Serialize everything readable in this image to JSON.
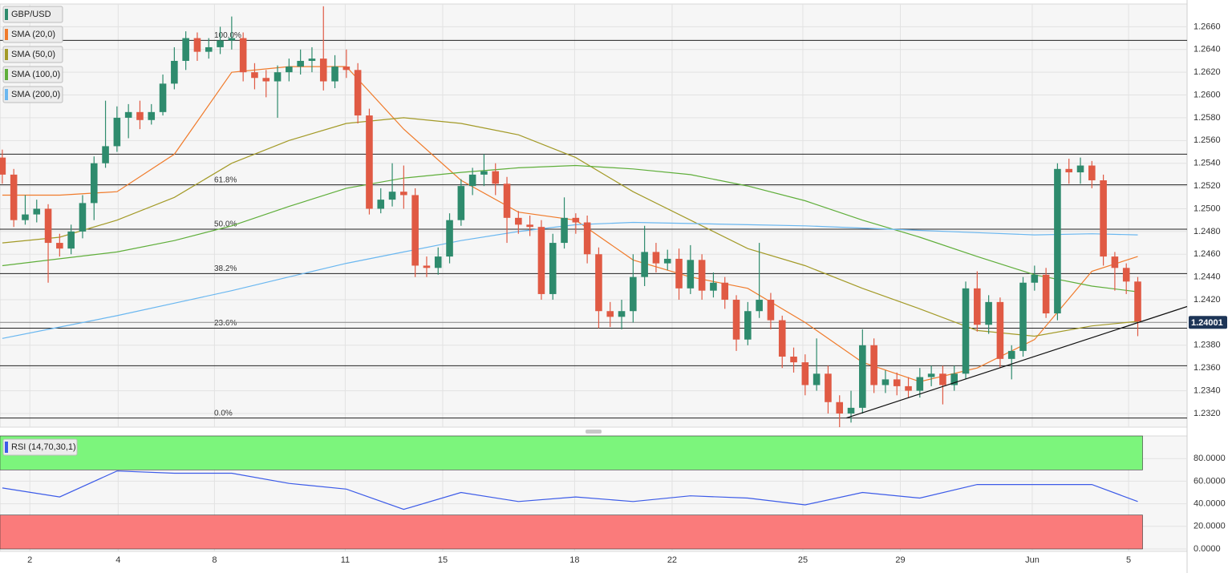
{
  "chart_data": [
    {
      "type": "candlestick",
      "name": "GBP/USD",
      "up_color": "#2e8b6d",
      "down_color": "#e05a44",
      "grid": true,
      "open": [
        1.2545,
        1.253,
        1.249,
        1.2495,
        1.25,
        1.247,
        1.2465,
        1.248,
        1.2505,
        1.254,
        1.2555,
        1.258,
        1.2585,
        1.2578,
        1.2585,
        1.261,
        1.263,
        1.265,
        1.2638,
        1.2642,
        1.2648,
        1.265,
        1.262,
        1.2615,
        1.2612,
        1.262,
        1.2625,
        1.263,
        1.2632,
        1.2612,
        1.2625,
        1.2622,
        1.2582,
        1.25,
        1.2508,
        1.2515,
        1.2512,
        1.245,
        1.2448,
        1.2458,
        1.249,
        1.252,
        1.253,
        1.2533,
        1.2522,
        1.2492,
        1.2486,
        1.2484,
        1.2425,
        1.247,
        1.2492,
        1.2488,
        1.246,
        1.241,
        1.2405,
        1.241,
        1.244,
        1.2462,
        1.2452,
        1.2456,
        1.243,
        1.2455,
        1.2428,
        1.2435,
        1.242,
        1.2385,
        1.241,
        1.242,
        1.2402,
        1.237,
        1.2365,
        1.2345,
        1.2355,
        1.233,
        1.232,
        1.2325,
        1.238,
        1.2345,
        1.235,
        1.2344,
        1.234,
        1.2352,
        1.2355,
        1.2345,
        1.2355,
        1.243,
        1.2398,
        1.2418,
        1.2368,
        1.2375,
        1.2435,
        1.2442,
        1.2408,
        1.2535,
        1.2532,
        1.2538,
        1.2525,
        1.2458,
        1.2448,
        1.2436
      ],
      "high": [
        1.2552,
        1.2535,
        1.2512,
        1.2508,
        1.2504,
        1.2478,
        1.2486,
        1.2512,
        1.2546,
        1.2595,
        1.259,
        1.2592,
        1.2595,
        1.2592,
        1.2618,
        1.2642,
        1.2656,
        1.2655,
        1.265,
        1.266,
        1.2669,
        1.2655,
        1.2628,
        1.2622,
        1.2626,
        1.2632,
        1.264,
        1.2642,
        1.2678,
        1.2635,
        1.264,
        1.2628,
        1.2588,
        1.2518,
        1.254,
        1.2538,
        1.2518,
        1.2458,
        1.2466,
        1.2496,
        1.2526,
        1.2536,
        1.2548,
        1.254,
        1.2528,
        1.2498,
        1.2494,
        1.249,
        1.2478,
        1.251,
        1.2496,
        1.2494,
        1.2466,
        1.2418,
        1.242,
        1.246,
        1.2485,
        1.247,
        1.2464,
        1.2465,
        1.2468,
        1.246,
        1.2444,
        1.244,
        1.2424,
        1.2418,
        1.247,
        1.2426,
        1.2406,
        1.2378,
        1.2372,
        1.2386,
        1.2362,
        1.2336,
        1.234,
        1.2394,
        1.2386,
        1.2358,
        1.2356,
        1.2352,
        1.236,
        1.2362,
        1.2362,
        1.2362,
        1.2436,
        1.2445,
        1.2424,
        1.2422,
        1.238,
        1.244,
        1.245,
        1.2448,
        1.254,
        1.2544,
        1.2545,
        1.2542,
        1.253,
        1.2462,
        1.2452,
        1.244
      ],
      "low": [
        1.2522,
        1.2484,
        1.2486,
        1.2488,
        1.2435,
        1.2458,
        1.246,
        1.2474,
        1.249,
        1.2536,
        1.255,
        1.2562,
        1.257,
        1.2574,
        1.2582,
        1.2605,
        1.2622,
        1.263,
        1.2632,
        1.2636,
        1.264,
        1.2612,
        1.2605,
        1.2598,
        1.258,
        1.2612,
        1.2618,
        1.262,
        1.2604,
        1.2606,
        1.2615,
        1.2575,
        1.2495,
        1.2496,
        1.2502,
        1.25,
        1.244,
        1.244,
        1.2442,
        1.2452,
        1.2485,
        1.2512,
        1.252,
        1.2512,
        1.247,
        1.2478,
        1.2476,
        1.242,
        1.242,
        1.2465,
        1.2478,
        1.2452,
        1.2395,
        1.2396,
        1.2394,
        1.24,
        1.2432,
        1.2444,
        1.2446,
        1.242,
        1.2425,
        1.242,
        1.2422,
        1.2412,
        1.2375,
        1.238,
        1.2404,
        1.2394,
        1.236,
        1.2356,
        1.2336,
        1.234,
        1.232,
        1.2308,
        1.2312,
        1.232,
        1.2338,
        1.2338,
        1.2336,
        1.2334,
        1.2334,
        1.2344,
        1.2328,
        1.234,
        1.235,
        1.2392,
        1.239,
        1.236,
        1.235,
        1.237,
        1.2428,
        1.2404,
        1.2402,
        1.2522,
        1.2522,
        1.2518,
        1.245,
        1.2428,
        1.2425,
        1.2388
      ],
      "close": [
        1.253,
        1.249,
        1.2495,
        1.25,
        1.247,
        1.2465,
        1.248,
        1.2505,
        1.254,
        1.2555,
        1.258,
        1.2585,
        1.2578,
        1.2585,
        1.261,
        1.263,
        1.265,
        1.2638,
        1.2642,
        1.2648,
        1.265,
        1.262,
        1.2615,
        1.2612,
        1.262,
        1.2625,
        1.263,
        1.2632,
        1.2612,
        1.2625,
        1.2622,
        1.2582,
        1.25,
        1.2508,
        1.2515,
        1.2512,
        1.245,
        1.2448,
        1.2458,
        1.249,
        1.252,
        1.253,
        1.2533,
        1.2522,
        1.2492,
        1.2486,
        1.2484,
        1.2425,
        1.247,
        1.2492,
        1.2488,
        1.246,
        1.241,
        1.2405,
        1.241,
        1.244,
        1.2462,
        1.2452,
        1.2456,
        1.243,
        1.2455,
        1.2428,
        1.2435,
        1.242,
        1.2385,
        1.241,
        1.242,
        1.2402,
        1.237,
        1.2365,
        1.2345,
        1.2355,
        1.233,
        1.232,
        1.2325,
        1.238,
        1.2345,
        1.235,
        1.2344,
        1.234,
        1.2352,
        1.2355,
        1.2345,
        1.2355,
        1.243,
        1.2398,
        1.2418,
        1.2368,
        1.2375,
        1.2435,
        1.2442,
        1.2408,
        1.2535,
        1.2532,
        1.2538,
        1.2525,
        1.2458,
        1.2448,
        1.2436,
        1.2401
      ],
      "series": [
        {
          "name": "SMA (20,0)",
          "color": "#f07b2b",
          "x": [
            0,
            5,
            10,
            15,
            20,
            25,
            30,
            35,
            40,
            45,
            50,
            55,
            60,
            65,
            70,
            75,
            80,
            85,
            90,
            95,
            99
          ],
          "values": [
            1.2512,
            1.2512,
            1.2515,
            1.2548,
            1.262,
            1.2625,
            1.2625,
            1.257,
            1.2525,
            1.2497,
            1.249,
            1.2455,
            1.244,
            1.243,
            1.24,
            1.2365,
            1.2348,
            1.236,
            1.2385,
            1.2445,
            1.2458
          ]
        },
        {
          "name": "SMA (50,0)",
          "color": "#a39a27",
          "x": [
            0,
            5,
            10,
            15,
            20,
            25,
            30,
            35,
            40,
            45,
            50,
            55,
            60,
            65,
            70,
            75,
            80,
            85,
            90,
            95,
            99
          ],
          "values": [
            1.247,
            1.2475,
            1.249,
            1.251,
            1.254,
            1.256,
            1.2575,
            1.258,
            1.2575,
            1.2565,
            1.2545,
            1.2515,
            1.249,
            1.2465,
            1.245,
            1.243,
            1.2412,
            1.2393,
            1.2388,
            1.2397,
            1.2401
          ]
        },
        {
          "name": "SMA (100,0)",
          "color": "#5fae3a",
          "x": [
            0,
            5,
            10,
            15,
            20,
            25,
            30,
            35,
            40,
            45,
            50,
            55,
            60,
            65,
            70,
            75,
            80,
            85,
            90,
            95,
            99
          ],
          "values": [
            1.245,
            1.2456,
            1.2462,
            1.2472,
            1.2485,
            1.2502,
            1.2518,
            1.2527,
            1.2532,
            1.2536,
            1.2538,
            1.2535,
            1.253,
            1.252,
            1.2507,
            1.249,
            1.2475,
            1.2458,
            1.2442,
            1.2432,
            1.2427
          ]
        },
        {
          "name": "SMA (200,0)",
          "color": "#6ab7f0",
          "x": [
            0,
            5,
            10,
            15,
            20,
            25,
            30,
            35,
            40,
            45,
            50,
            55,
            60,
            65,
            70,
            75,
            80,
            85,
            90,
            95,
            99
          ],
          "values": [
            1.2386,
            1.2396,
            1.2406,
            1.2417,
            1.2428,
            1.244,
            1.2452,
            1.2462,
            1.2472,
            1.248,
            1.2486,
            1.2488,
            1.2487,
            1.2486,
            1.2485,
            1.2483,
            1.2481,
            1.2479,
            1.2477,
            1.2478,
            1.2477
          ]
        }
      ],
      "fib_levels": [
        {
          "label": "100.0%",
          "value": 1.2648
        },
        {
          "label": "61.8%",
          "value": 1.2521
        },
        {
          "label": "50.0%",
          "value": 1.2482
        },
        {
          "label": "38.2%",
          "value": 1.2443
        },
        {
          "label": "23.6%",
          "value": 1.2395
        },
        {
          "label": "0.0%",
          "value": 1.2316
        }
      ],
      "levels": [
        1.2548,
        1.2362
      ],
      "trendline": {
        "x": [
          73.6,
          103.3
        ],
        "values": [
          1.2316,
          1.2414
        ]
      },
      "last_price": 1.24001,
      "xlim": [
        -0.2,
        103.3
      ],
      "ylim": [
        1.2308,
        1.268
      ],
      "yticks": [
        {
          "value": 1.232,
          "label": "1.2320"
        },
        {
          "value": 1.234,
          "label": "1.2340"
        },
        {
          "value": 1.236,
          "label": "1.2360"
        },
        {
          "value": 1.238,
          "label": "1.2380"
        },
        {
          "value": 1.24,
          "label": "1.2400"
        },
        {
          "value": 1.242,
          "label": "1.2420"
        },
        {
          "value": 1.244,
          "label": "1.2440"
        },
        {
          "value": 1.246,
          "label": "1.2460"
        },
        {
          "value": 1.248,
          "label": "1.2480"
        },
        {
          "value": 1.25,
          "label": "1.2500"
        },
        {
          "value": 1.252,
          "label": "1.2520"
        },
        {
          "value": 1.254,
          "label": "1.2540"
        },
        {
          "value": 1.256,
          "label": "1.2560"
        },
        {
          "value": 1.258,
          "label": "1.2580"
        },
        {
          "value": 1.26,
          "label": "1.2600"
        },
        {
          "value": 1.262,
          "label": "1.2620"
        },
        {
          "value": 1.264,
          "label": "1.2640"
        },
        {
          "value": 1.266,
          "label": "1.2660"
        }
      ],
      "xticks": [
        {
          "value": 2.4,
          "label": "2"
        },
        {
          "value": 10.1,
          "label": "4"
        },
        {
          "value": 18.5,
          "label": "8"
        },
        {
          "value": 29.9,
          "label": "11"
        },
        {
          "value": 38.4,
          "label": "15"
        },
        {
          "value": 49.9,
          "label": "18"
        },
        {
          "value": 58.4,
          "label": "22"
        },
        {
          "value": 69.8,
          "label": "25"
        },
        {
          "value": 78.3,
          "label": "29"
        },
        {
          "value": 89.8,
          "label": "Jun"
        },
        {
          "value": 98.2,
          "label": "5"
        }
      ]
    },
    {
      "type": "line",
      "name": "RSI (14,70,30,1)",
      "color": "#3c5be8",
      "overbought": 70,
      "oversold": 30,
      "x": [
        0,
        5,
        10,
        15,
        20,
        25,
        30,
        35,
        40,
        45,
        50,
        55,
        60,
        65,
        70,
        75,
        80,
        85,
        90,
        95,
        99
      ],
      "values": [
        54,
        46,
        69,
        67,
        67,
        58,
        53,
        35,
        50,
        42,
        46,
        42,
        47,
        45,
        39,
        50,
        45,
        57,
        57,
        57,
        42
      ],
      "ylim": [
        0,
        100
      ],
      "yticks": [
        {
          "value": 0,
          "label": "0.0000"
        },
        {
          "value": 20,
          "label": "20.0000"
        },
        {
          "value": 40,
          "label": "40.0000"
        },
        {
          "value": 60,
          "label": "60.0000"
        },
        {
          "value": 80,
          "label": "80.0000"
        }
      ]
    }
  ]
}
